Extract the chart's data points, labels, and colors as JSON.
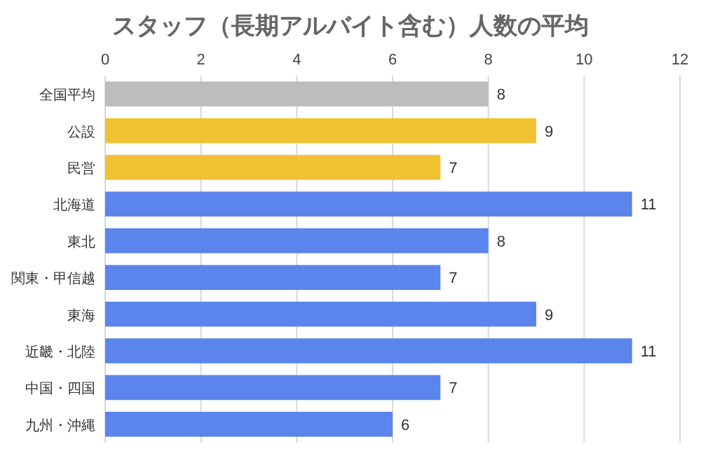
{
  "chart_data": {
    "type": "bar",
    "orientation": "horizontal",
    "title": "スタッフ（長期アルバイト含む）人数の平均",
    "categories": [
      "全国平均",
      "公設",
      "民営",
      "北海道",
      "東北",
      "関東・甲信越",
      "東海",
      "近畿・北陸",
      "中国・四国",
      "九州・沖縄"
    ],
    "values": [
      8,
      9,
      7,
      11,
      8,
      7,
      9,
      11,
      7,
      6
    ],
    "colors": [
      "#bdbdbd",
      "#f1c232",
      "#f1c232",
      "#5b85ec",
      "#5b85ec",
      "#5b85ec",
      "#5b85ec",
      "#5b85ec",
      "#5b85ec",
      "#5b85ec"
    ],
    "xlim": [
      0,
      12
    ],
    "xticks": [
      0,
      2,
      4,
      6,
      8,
      10,
      12
    ],
    "grid": "x",
    "data_labels": true
  }
}
